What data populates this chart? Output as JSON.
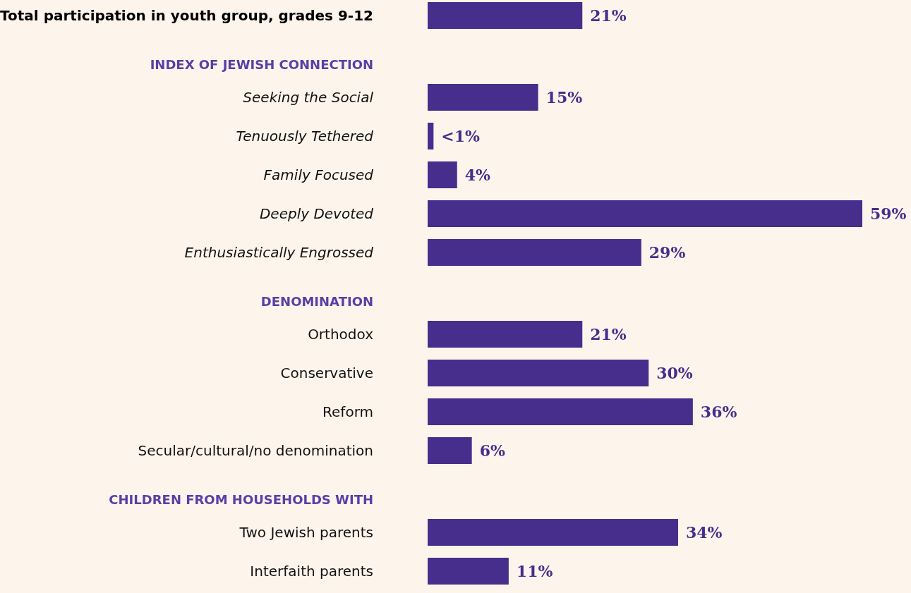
{
  "chart_data": {
    "type": "bar",
    "orientation": "horizontal",
    "categories": [
      "Total participation in youth group, grades 9-12",
      "INDEX OF JEWISH CONNECTION",
      "Seeking the Social",
      "Tenuously Tethered",
      "Family Focused",
      "Deeply Devoted",
      "Enthusiastically Engrossed",
      "DENOMINATION",
      "Orthodox",
      "Conservative",
      "Reform",
      "Secular/cultural/no denomination",
      "CHILDREN FROM HOUSEHOLDS WITH",
      "Two Jewish parents",
      "Interfaith parents"
    ],
    "values": [
      21,
      null,
      15,
      0.8,
      4,
      59,
      29,
      null,
      21,
      30,
      36,
      6,
      null,
      34,
      11
    ],
    "value_labels": [
      "21%",
      null,
      "15%",
      "<1%",
      "4%",
      "59%",
      "29%",
      null,
      "21%",
      "30%",
      "36%",
      "6%",
      null,
      "34%",
      "11%"
    ],
    "color": "#472d8c"
  }
}
